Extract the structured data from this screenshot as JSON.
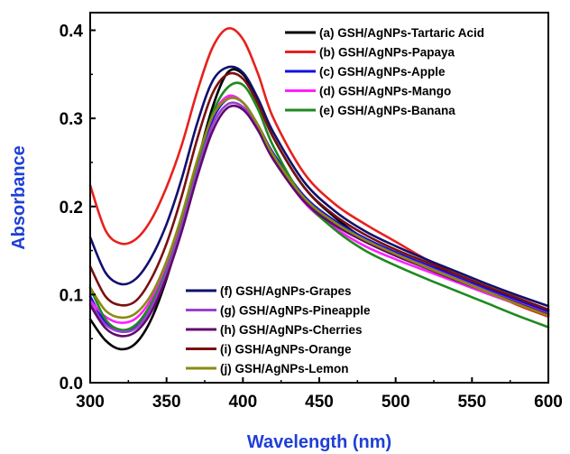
{
  "chart_data": {
    "type": "line",
    "title": "",
    "xlabel": "Wavelength (nm)",
    "ylabel": "Absorbance",
    "xlim": [
      300,
      600
    ],
    "ylim": [
      0.0,
      0.42
    ],
    "xticks": [
      300,
      350,
      400,
      450,
      500,
      550,
      600
    ],
    "yticks": [
      0.0,
      0.1,
      0.2,
      0.3,
      0.4
    ],
    "xtick_labels": [
      "300",
      "350",
      "400",
      "450",
      "500",
      "550",
      "600"
    ],
    "ytick_labels": [
      "0.0",
      "0.1",
      "0.2",
      "0.3",
      "0.4"
    ],
    "grid": false,
    "legend_groups": [
      {
        "placement": "top-right",
        "series_indices": [
          0,
          1,
          2,
          3,
          4
        ]
      },
      {
        "placement": "bottom-center",
        "series_indices": [
          5,
          6,
          7,
          8,
          9
        ]
      }
    ],
    "x": [
      300,
      310,
      320,
      330,
      340,
      350,
      360,
      370,
      380,
      390,
      400,
      410,
      420,
      440,
      460,
      480,
      500,
      520,
      540,
      560,
      580,
      600
    ],
    "series": [
      {
        "name": "(a) GSH/AgNPs-Tartaric Acid",
        "color": "#000000",
        "values": [
          0.072,
          0.048,
          0.038,
          0.045,
          0.072,
          0.118,
          0.178,
          0.248,
          0.312,
          0.352,
          0.35,
          0.318,
          0.278,
          0.222,
          0.188,
          0.163,
          0.147,
          0.134,
          0.121,
          0.108,
          0.095,
          0.082
        ]
      },
      {
        "name": "(b) GSH/AgNPs-Papaya",
        "color": "#e8201c",
        "values": [
          0.224,
          0.173,
          0.158,
          0.163,
          0.185,
          0.222,
          0.27,
          0.33,
          0.38,
          0.402,
          0.39,
          0.35,
          0.3,
          0.238,
          0.203,
          0.18,
          0.16,
          0.14,
          0.122,
          0.104,
          0.088,
          0.075
        ]
      },
      {
        "name": "(c) GSH/AgNPs-Apple",
        "color": "#1010e0",
        "values": [
          0.098,
          0.068,
          0.058,
          0.063,
          0.088,
          0.128,
          0.182,
          0.245,
          0.298,
          0.322,
          0.318,
          0.292,
          0.26,
          0.212,
          0.184,
          0.164,
          0.148,
          0.134,
          0.12,
          0.106,
          0.093,
          0.08
        ]
      },
      {
        "name": "(d) GSH/AgNPs-Mango",
        "color": "#ff20ff",
        "values": [
          0.093,
          0.075,
          0.068,
          0.073,
          0.095,
          0.135,
          0.188,
          0.25,
          0.302,
          0.325,
          0.318,
          0.29,
          0.255,
          0.205,
          0.176,
          0.155,
          0.14,
          0.127,
          0.114,
          0.101,
          0.089,
          0.078
        ]
      },
      {
        "name": "(e) GSH/AgNPs-Banana",
        "color": "#1e8a1e",
        "values": [
          0.108,
          0.072,
          0.06,
          0.066,
          0.09,
          0.128,
          0.18,
          0.245,
          0.305,
          0.335,
          0.338,
          0.31,
          0.268,
          0.208,
          0.174,
          0.15,
          0.133,
          0.118,
          0.104,
          0.09,
          0.076,
          0.063
        ]
      },
      {
        "name": "(f) GSH/AgNPs-Grapes",
        "color": "#10106e",
        "values": [
          0.165,
          0.125,
          0.112,
          0.118,
          0.142,
          0.18,
          0.232,
          0.294,
          0.342,
          0.358,
          0.352,
          0.322,
          0.284,
          0.228,
          0.195,
          0.172,
          0.155,
          0.14,
          0.126,
          0.112,
          0.099,
          0.087
        ]
      },
      {
        "name": "(g) GSH/AgNPs-Pineapple",
        "color": "#9a40d0",
        "values": [
          0.09,
          0.066,
          0.058,
          0.062,
          0.085,
          0.125,
          0.178,
          0.24,
          0.292,
          0.316,
          0.313,
          0.288,
          0.255,
          0.208,
          0.181,
          0.162,
          0.146,
          0.132,
          0.118,
          0.104,
          0.091,
          0.078
        ]
      },
      {
        "name": "(h) GSH/AgNPs-Cherries",
        "color": "#600a6e",
        "values": [
          0.088,
          0.062,
          0.053,
          0.058,
          0.08,
          0.12,
          0.172,
          0.233,
          0.285,
          0.312,
          0.31,
          0.286,
          0.253,
          0.206,
          0.179,
          0.16,
          0.144,
          0.13,
          0.116,
          0.103,
          0.09,
          0.077
        ]
      },
      {
        "name": "(i) GSH/AgNPs-Orange",
        "color": "#7a1010",
        "values": [
          0.132,
          0.098,
          0.088,
          0.093,
          0.118,
          0.158,
          0.212,
          0.276,
          0.328,
          0.35,
          0.345,
          0.316,
          0.278,
          0.222,
          0.19,
          0.168,
          0.151,
          0.137,
          0.123,
          0.109,
          0.096,
          0.083
        ]
      },
      {
        "name": "(j) GSH/AgNPs-Lemon",
        "color": "#8a8a10",
        "values": [
          0.108,
          0.082,
          0.074,
          0.079,
          0.1,
          0.138,
          0.19,
          0.252,
          0.302,
          0.322,
          0.318,
          0.292,
          0.258,
          0.21,
          0.182,
          0.162,
          0.146,
          0.131,
          0.117,
          0.103,
          0.089,
          0.076
        ]
      }
    ]
  }
}
